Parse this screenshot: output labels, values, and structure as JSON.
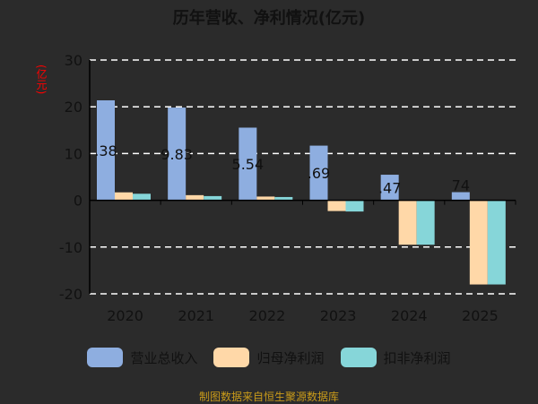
{
  "title": "历年营收、净利情况(亿元)",
  "unit_label": "(亿元)",
  "source": "制图数据来自恒生聚源数据库",
  "colors": {
    "revenue": "#8eaee0",
    "parent_net": "#ffd8a8",
    "deducted_net": "#86d6d9",
    "grid": "#ffffff",
    "axis_text": "#111111"
  },
  "chart_data": {
    "type": "bar",
    "categories": [
      "2020",
      "2021",
      "2022",
      "2023",
      "2024",
      "2025"
    ],
    "ylim": [
      -20,
      30
    ],
    "yticks": [
      -20,
      -10,
      0,
      10,
      20,
      30
    ],
    "grid": true,
    "legend": "bottom",
    "series": [
      {
        "name": "营业总收入",
        "values": [
          21.38,
          19.83,
          15.54,
          11.69,
          5.47,
          1.74
        ],
        "labels": [
          ".38",
          "9.83",
          "5.54",
          ".69",
          ".47",
          "74"
        ]
      },
      {
        "name": "归母净利润",
        "values": [
          1.7,
          1.1,
          0.8,
          -2.3,
          -9.5,
          -18.0
        ]
      },
      {
        "name": "扣非净利润",
        "values": [
          1.4,
          0.9,
          0.7,
          -2.4,
          -9.5,
          -18.0
        ]
      }
    ]
  }
}
